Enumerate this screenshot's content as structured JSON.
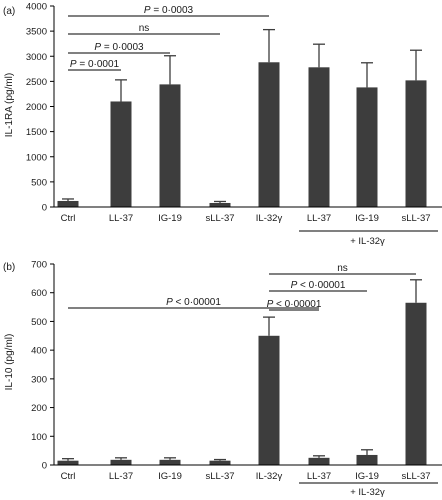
{
  "chart_data": [
    {
      "type": "bar",
      "panel_label": "(a)",
      "ylabel": "IL-1RA (pg/ml)",
      "ylim": [
        0,
        4000
      ],
      "yticks": [
        0,
        500,
        1000,
        1500,
        2000,
        2500,
        3000,
        3500,
        4000
      ],
      "categories": [
        "Ctrl",
        "LL-37",
        "IG-19",
        "sLL-37",
        "IL-32γ",
        "LL-37",
        "IG-19",
        "sLL-37"
      ],
      "values": [
        120,
        2100,
        2440,
        80,
        2880,
        2780,
        2380,
        2520
      ],
      "errors": [
        40,
        430,
        570,
        30,
        650,
        460,
        490,
        600
      ],
      "group_label": "+ IL-32γ",
      "group_indices": [
        5,
        7
      ],
      "annotations": [
        {
          "text_prefix": "P",
          "text": " = 0·0003",
          "from": 0,
          "to": 4
        },
        {
          "text_prefix": "",
          "text": "ns",
          "from": 0,
          "to": 3
        },
        {
          "text_prefix": "P",
          "text": " = 0·0003",
          "from": 0,
          "to": 2
        },
        {
          "text_prefix": "P",
          "text": " = 0·0001",
          "from": 0,
          "to": 1
        }
      ]
    },
    {
      "type": "bar",
      "panel_label": "(b)",
      "ylabel": "IL-10 (pg/ml)",
      "ylim": [
        0,
        700
      ],
      "yticks": [
        0,
        100,
        200,
        300,
        400,
        500,
        600,
        700
      ],
      "categories": [
        "Ctrl",
        "LL-37",
        "IG-19",
        "sLL-37",
        "IL-32γ",
        "LL-37",
        "IG-19",
        "sLL-37"
      ],
      "values": [
        15,
        18,
        18,
        15,
        450,
        25,
        35,
        565
      ],
      "errors": [
        7,
        7,
        7,
        4,
        65,
        7,
        18,
        80
      ],
      "group_label": "+ IL-32γ",
      "group_indices": [
        5,
        7
      ],
      "annotations": [
        {
          "text_prefix": "",
          "text": "ns",
          "from": 4,
          "to": 7
        },
        {
          "text_prefix": "P",
          "text": " < 0·00001",
          "from": 4,
          "to": 6
        },
        {
          "text_prefix": "P",
          "text": " < 0·00001",
          "from": 0,
          "to": 5
        },
        {
          "text_prefix": "P",
          "text": " < 0·00001",
          "from": 4,
          "to": 5
        }
      ]
    }
  ]
}
